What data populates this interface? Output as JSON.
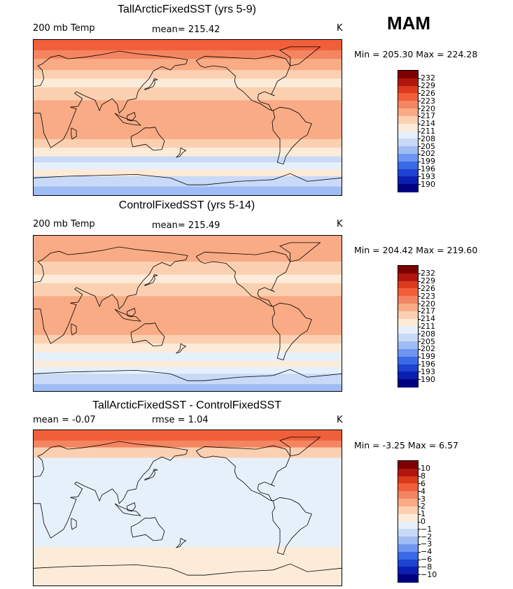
{
  "season": "MAM",
  "colors": {
    "levels": [
      "#000080",
      "#0a1fb0",
      "#1c43d3",
      "#3a6ae6",
      "#6e96f0",
      "#9fbcf5",
      "#c9daf8",
      "#e6f0fb",
      "#fdebd9",
      "#fbd0b1",
      "#f8ab85",
      "#f48561",
      "#f15f3a",
      "#dc3a1d",
      "#b0160d",
      "#7f0000"
    ],
    "coast": "#000000"
  },
  "chart_data": [
    {
      "type": "heatmap",
      "title": "TallArcticFixedSST (yrs 5-9)",
      "variable": "200 mb Temp",
      "mean_text": "mean= 215.42",
      "units": "K",
      "minmax_text": "Min = 205.30 Max = 224.28",
      "min": 205.3,
      "max": 224.28,
      "mean": 215.42,
      "colorbar_labels": [
        "232",
        "229",
        "226",
        "223",
        "220",
        "217",
        "214",
        "211",
        "208",
        "205",
        "202",
        "199",
        "196",
        "193",
        "190"
      ],
      "bands": [
        {
          "lat": 90,
          "level": 12
        },
        {
          "lat": 78,
          "level": 11
        },
        {
          "lat": 68,
          "level": 10
        },
        {
          "lat": 55,
          "level": 9
        },
        {
          "lat": 45,
          "level": 8
        },
        {
          "lat": 35,
          "level": 9
        },
        {
          "lat": 20,
          "level": 10
        },
        {
          "lat": 0,
          "level": 10
        },
        {
          "lat": -15,
          "level": 10
        },
        {
          "lat": -25,
          "level": 9
        },
        {
          "lat": -35,
          "level": 8
        },
        {
          "lat": -45,
          "level": 6
        },
        {
          "lat": -52,
          "level": 7
        },
        {
          "lat": -60,
          "level": 8
        },
        {
          "lat": -68,
          "level": 6
        },
        {
          "lat": -80,
          "level": 5
        },
        {
          "lat": -90,
          "level": 5
        }
      ]
    },
    {
      "type": "heatmap",
      "title": "ControlFixedSST (yrs 5-14)",
      "variable": "200 mb Temp",
      "mean_text": "mean= 215.49",
      "units": "K",
      "minmax_text": "Min = 204.42 Max = 219.60",
      "min": 204.42,
      "max": 219.6,
      "mean": 215.49,
      "colorbar_labels": [
        "232",
        "229",
        "226",
        "223",
        "220",
        "217",
        "214",
        "211",
        "208",
        "205",
        "202",
        "199",
        "196",
        "193",
        "190"
      ],
      "bands": [
        {
          "lat": 90,
          "level": 10
        },
        {
          "lat": 75,
          "level": 10
        },
        {
          "lat": 60,
          "level": 9
        },
        {
          "lat": 45,
          "level": 8
        },
        {
          "lat": 35,
          "level": 9
        },
        {
          "lat": 20,
          "level": 10
        },
        {
          "lat": 0,
          "level": 10
        },
        {
          "lat": -15,
          "level": 10
        },
        {
          "lat": -25,
          "level": 9
        },
        {
          "lat": -35,
          "level": 8
        },
        {
          "lat": -45,
          "level": 7
        },
        {
          "lat": -55,
          "level": 8
        },
        {
          "lat": -62,
          "level": 7
        },
        {
          "lat": -70,
          "level": 6
        },
        {
          "lat": -82,
          "level": 5
        },
        {
          "lat": -90,
          "level": 5
        }
      ]
    },
    {
      "type": "heatmap",
      "title": "TallArcticFixedSST - ControlFixedSST",
      "variable": "",
      "mean_text": "mean =   -0.07",
      "rmse_text": "rmse =    1.04",
      "units": "K",
      "minmax_text": "Min =   -3.25 Max =    6.57",
      "min": -3.25,
      "max": 6.57,
      "mean": -0.07,
      "rmse": 1.04,
      "colorbar_labels": [
        "10",
        "8",
        "6",
        "4",
        "3",
        "2",
        "1",
        "0",
        "−1",
        "−2",
        "−3",
        "−4",
        "−6",
        "−8",
        "−10"
      ],
      "bands": [
        {
          "lat": 90,
          "level": 12
        },
        {
          "lat": 78,
          "level": 11
        },
        {
          "lat": 70,
          "level": 9
        },
        {
          "lat": 58,
          "level": 7
        },
        {
          "lat": 40,
          "level": 7
        },
        {
          "lat": 0,
          "level": 7
        },
        {
          "lat": -30,
          "level": 7
        },
        {
          "lat": -45,
          "level": 8
        },
        {
          "lat": -55,
          "level": 8
        },
        {
          "lat": -65,
          "level": 8
        },
        {
          "lat": -80,
          "level": 8
        },
        {
          "lat": -90,
          "level": 8
        }
      ]
    }
  ]
}
